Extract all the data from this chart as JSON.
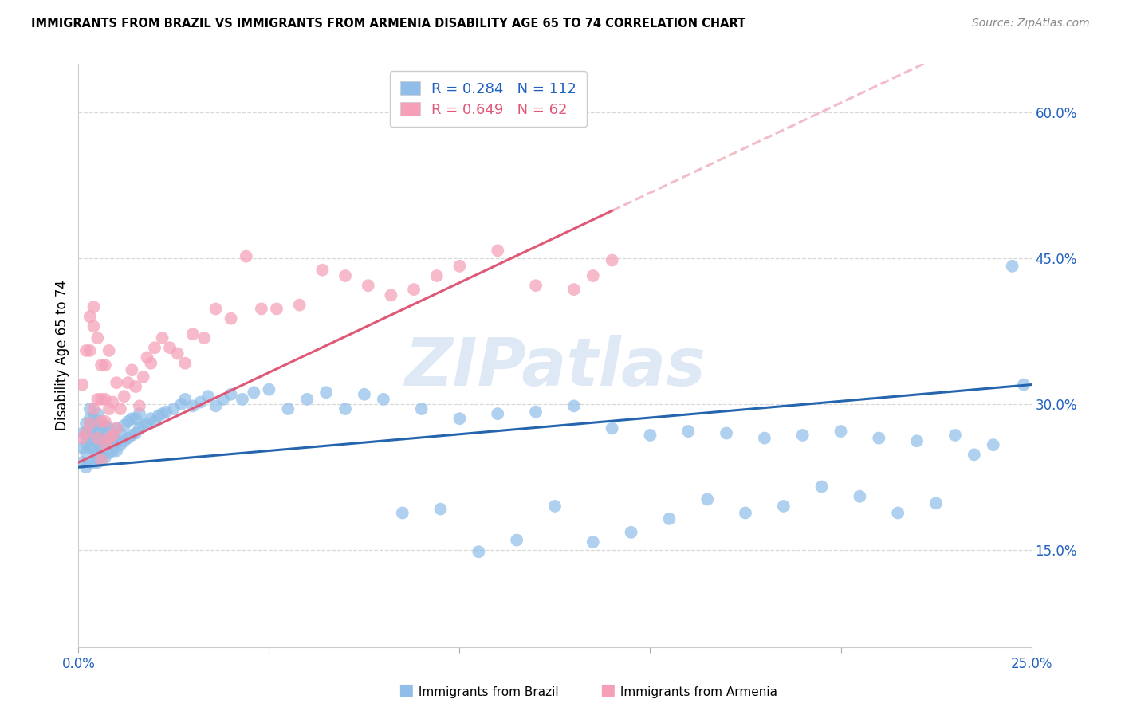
{
  "title": "IMMIGRANTS FROM BRAZIL VS IMMIGRANTS FROM ARMENIA DISABILITY AGE 65 TO 74 CORRELATION CHART",
  "source": "Source: ZipAtlas.com",
  "ylabel": "Disability Age 65 to 74",
  "xlim": [
    0.0,
    0.25
  ],
  "ylim": [
    0.05,
    0.65
  ],
  "xticks": [
    0.0,
    0.05,
    0.1,
    0.15,
    0.2,
    0.25
  ],
  "xticklabels": [
    "0.0%",
    "",
    "",
    "",
    "",
    "25.0%"
  ],
  "yticks_right": [
    0.15,
    0.3,
    0.45,
    0.6
  ],
  "ytick_right_labels": [
    "15.0%",
    "30.0%",
    "45.0%",
    "60.0%"
  ],
  "brazil_color": "#90BEE8",
  "armenia_color": "#F5A0B8",
  "brazil_R": 0.284,
  "brazil_N": 112,
  "armenia_R": 0.649,
  "armenia_N": 62,
  "brazil_line_color": "#2565AE",
  "armenia_line_color": "#E05878",
  "axis_label_color": "#2060C0",
  "watermark": "ZIPatlas",
  "grid_color": "#d8d8d8",
  "brazil_intercept": 0.235,
  "brazil_slope": 0.34,
  "armenia_intercept": 0.24,
  "armenia_slope": 1.85,
  "brazil_scatter_x": [
    0.001,
    0.001,
    0.001,
    0.002,
    0.002,
    0.002,
    0.002,
    0.002,
    0.003,
    0.003,
    0.003,
    0.003,
    0.003,
    0.003,
    0.004,
    0.004,
    0.004,
    0.004,
    0.004,
    0.005,
    0.005,
    0.005,
    0.005,
    0.005,
    0.005,
    0.006,
    0.006,
    0.006,
    0.006,
    0.007,
    0.007,
    0.007,
    0.007,
    0.008,
    0.008,
    0.008,
    0.009,
    0.009,
    0.01,
    0.01,
    0.01,
    0.011,
    0.011,
    0.012,
    0.012,
    0.013,
    0.013,
    0.014,
    0.014,
    0.015,
    0.015,
    0.016,
    0.016,
    0.017,
    0.018,
    0.019,
    0.02,
    0.021,
    0.022,
    0.023,
    0.025,
    0.027,
    0.028,
    0.03,
    0.032,
    0.034,
    0.036,
    0.038,
    0.04,
    0.043,
    0.046,
    0.05,
    0.055,
    0.06,
    0.065,
    0.07,
    0.08,
    0.09,
    0.1,
    0.11,
    0.12,
    0.13,
    0.14,
    0.15,
    0.16,
    0.17,
    0.18,
    0.19,
    0.2,
    0.21,
    0.22,
    0.23,
    0.24,
    0.248,
    0.075,
    0.085,
    0.095,
    0.105,
    0.115,
    0.125,
    0.135,
    0.145,
    0.155,
    0.165,
    0.175,
    0.185,
    0.195,
    0.205,
    0.215,
    0.225,
    0.235,
    0.245
  ],
  "brazil_scatter_y": [
    0.24,
    0.255,
    0.27,
    0.235,
    0.25,
    0.26,
    0.27,
    0.28,
    0.24,
    0.255,
    0.265,
    0.275,
    0.285,
    0.295,
    0.24,
    0.255,
    0.265,
    0.275,
    0.285,
    0.24,
    0.25,
    0.26,
    0.27,
    0.28,
    0.29,
    0.245,
    0.255,
    0.265,
    0.278,
    0.245,
    0.258,
    0.268,
    0.278,
    0.25,
    0.262,
    0.275,
    0.252,
    0.265,
    0.252,
    0.262,
    0.275,
    0.258,
    0.27,
    0.262,
    0.278,
    0.265,
    0.282,
    0.268,
    0.285,
    0.27,
    0.285,
    0.275,
    0.29,
    0.278,
    0.28,
    0.285,
    0.282,
    0.288,
    0.29,
    0.292,
    0.295,
    0.3,
    0.305,
    0.298,
    0.302,
    0.308,
    0.298,
    0.305,
    0.31,
    0.305,
    0.312,
    0.315,
    0.295,
    0.305,
    0.312,
    0.295,
    0.305,
    0.295,
    0.285,
    0.29,
    0.292,
    0.298,
    0.275,
    0.268,
    0.272,
    0.27,
    0.265,
    0.268,
    0.272,
    0.265,
    0.262,
    0.268,
    0.258,
    0.32,
    0.31,
    0.188,
    0.192,
    0.148,
    0.16,
    0.195,
    0.158,
    0.168,
    0.182,
    0.202,
    0.188,
    0.195,
    0.215,
    0.205,
    0.188,
    0.198,
    0.248,
    0.442
  ],
  "armenia_scatter_x": [
    0.001,
    0.001,
    0.002,
    0.002,
    0.003,
    0.003,
    0.003,
    0.004,
    0.004,
    0.004,
    0.005,
    0.005,
    0.005,
    0.006,
    0.006,
    0.006,
    0.006,
    0.007,
    0.007,
    0.007,
    0.007,
    0.008,
    0.008,
    0.008,
    0.009,
    0.009,
    0.01,
    0.01,
    0.011,
    0.012,
    0.013,
    0.014,
    0.015,
    0.016,
    0.017,
    0.018,
    0.019,
    0.02,
    0.022,
    0.024,
    0.026,
    0.028,
    0.03,
    0.033,
    0.036,
    0.04,
    0.044,
    0.048,
    0.052,
    0.058,
    0.064,
    0.07,
    0.076,
    0.082,
    0.088,
    0.094,
    0.1,
    0.11,
    0.12,
    0.13,
    0.135,
    0.14
  ],
  "armenia_scatter_y": [
    0.265,
    0.32,
    0.27,
    0.355,
    0.28,
    0.355,
    0.39,
    0.295,
    0.38,
    0.4,
    0.265,
    0.305,
    0.368,
    0.242,
    0.282,
    0.305,
    0.34,
    0.258,
    0.282,
    0.305,
    0.34,
    0.265,
    0.295,
    0.355,
    0.268,
    0.302,
    0.275,
    0.322,
    0.295,
    0.308,
    0.322,
    0.335,
    0.318,
    0.298,
    0.328,
    0.348,
    0.342,
    0.358,
    0.368,
    0.358,
    0.352,
    0.342,
    0.372,
    0.368,
    0.398,
    0.388,
    0.452,
    0.398,
    0.398,
    0.402,
    0.438,
    0.432,
    0.422,
    0.412,
    0.418,
    0.432,
    0.442,
    0.458,
    0.422,
    0.418,
    0.432,
    0.448
  ]
}
